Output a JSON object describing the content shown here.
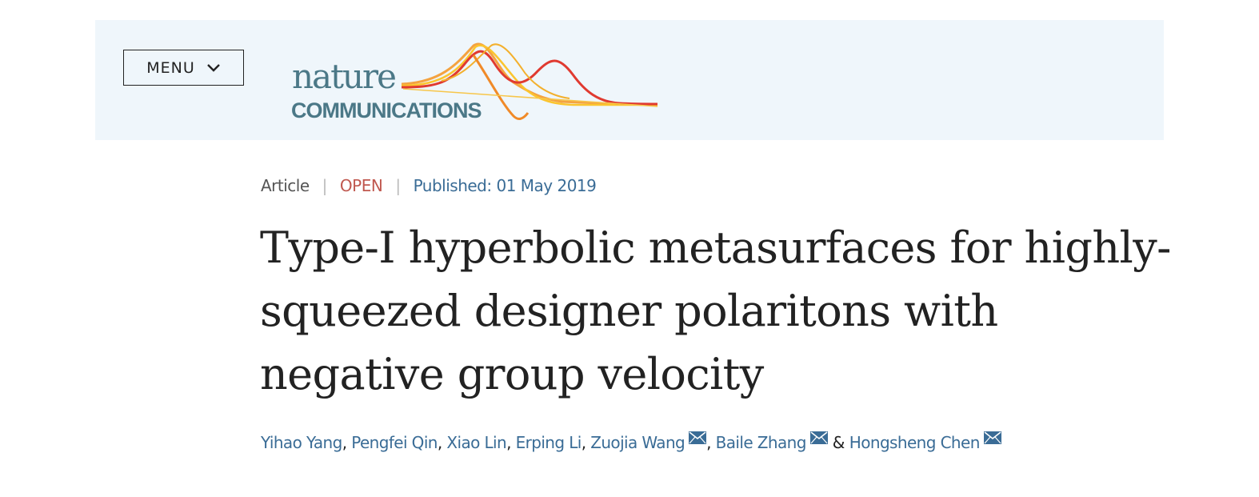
{
  "header": {
    "menu_label": "MENU",
    "logo": {
      "line1": "nature",
      "line2": "COMMUNICATIONS",
      "color": "#4b7887"
    },
    "background": "#eff6fb"
  },
  "article_meta": {
    "type": "Article",
    "access": "OPEN",
    "published": "Published: 01 May 2019",
    "open_color": "#c0584f",
    "link_color": "#3a6c96"
  },
  "title": "Type-I hyperbolic metasurfaces for highly-squeezed designer polaritons with negative group velocity",
  "authors": [
    {
      "name": "Yihao Yang"
    },
    {
      "name": "Pengfei Qin"
    },
    {
      "name": "Xiao Lin"
    },
    {
      "name": "Erping Li"
    },
    {
      "name": "Zuojia Wang",
      "icon": "mail-icon"
    },
    {
      "name": "Baile Zhang",
      "icon": "mail-icon"
    },
    {
      "name": "Hongsheng Chen",
      "icon": "mail-icon"
    }
  ],
  "authors_conjunction": "&"
}
